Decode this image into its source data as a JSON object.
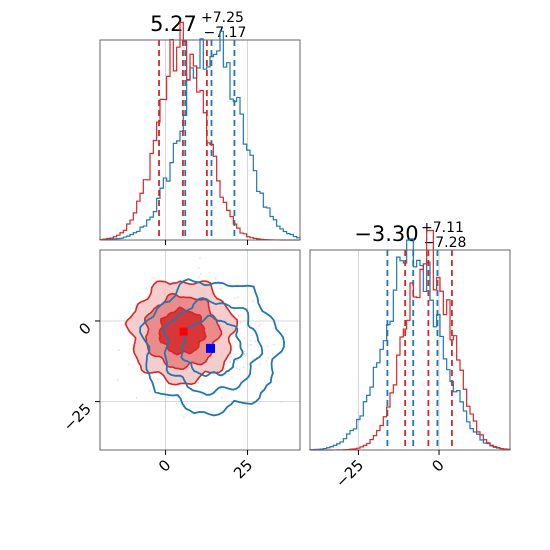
{
  "chart_data": {
    "type": "corner",
    "parameters": 2,
    "series": [
      {
        "name": "",
        "color": "#d62728",
        "center": [
          5.0,
          -3.3
        ],
        "sigma": [
          7.2,
          7.2
        ]
      },
      {
        "name": "",
        "color": "#1f77b4",
        "center": [
          14.0,
          -8.0
        ],
        "sigma": [
          9.0,
          8.8
        ]
      }
    ],
    "marginals": {
      "p0": {
        "title": {
          "value": "5.27",
          "plus": "+7.25",
          "minus": "−7.17"
        },
        "xlim": [
          -20,
          41
        ],
        "red_quantiles": [
          -2.0,
          5.3,
          12.6
        ],
        "blue_quantiles": [
          6.0,
          14.0,
          21.0
        ]
      },
      "p1": {
        "title": {
          "value": "−3.30",
          "plus": "+7.11",
          "minus": "−7.28"
        },
        "xlim": [
          -40,
          22
        ],
        "red_quantiles": [
          -10.5,
          -3.3,
          4.0
        ],
        "blue_quantiles": [
          -16.0,
          -8.0,
          -0.5
        ]
      }
    },
    "joint": {
      "xlim": [
        -20,
        41
      ],
      "ylim": [
        -40,
        22
      ],
      "red_marker": [
        5.5,
        -3.3
      ],
      "blue_marker": [
        13.7,
        -8.5
      ],
      "levels": [
        "1-sigma",
        "2-sigma",
        "3-sigma"
      ]
    },
    "ticks": {
      "joint_x": [
        {
          "value": 0,
          "label": "0"
        },
        {
          "value": 25,
          "label": "25"
        }
      ],
      "joint_y": [
        {
          "value": 0,
          "label": "0"
        },
        {
          "value": -25,
          "label": "−25"
        }
      ],
      "p1_x": [
        {
          "value": -25,
          "label": "−25"
        },
        {
          "value": 0,
          "label": "0"
        }
      ]
    },
    "grid": true
  }
}
